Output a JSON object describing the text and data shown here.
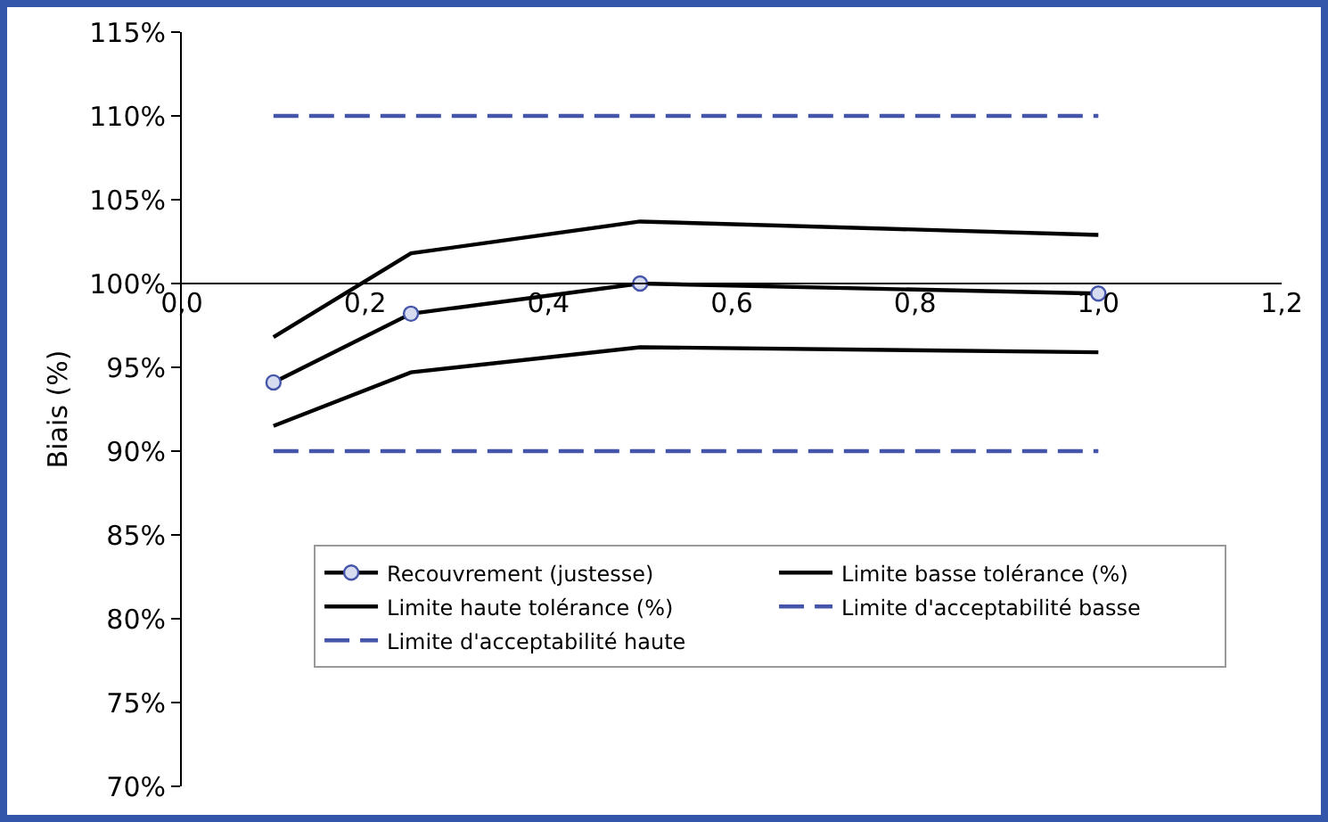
{
  "chart_data": {
    "type": "line",
    "ylabel": "Biais (%)",
    "xlim": [
      0,
      1.2
    ],
    "xticks": [
      {
        "value": 0,
        "label": "0,0"
      },
      {
        "value": 0.2,
        "label": "0,2"
      },
      {
        "value": 0.4,
        "label": "0,4"
      },
      {
        "value": 0.6,
        "label": "0,6"
      },
      {
        "value": 0.8,
        "label": "0,8"
      },
      {
        "value": 1,
        "label": "1,0"
      },
      {
        "value": 1.2,
        "label": "1,2"
      }
    ],
    "ylim": [
      70,
      115
    ],
    "yticks": [
      {
        "value": 70,
        "label": "70%"
      },
      {
        "value": 75,
        "label": "75%"
      },
      {
        "value": 80,
        "label": "80%"
      },
      {
        "value": 85,
        "label": "85%"
      },
      {
        "value": 90,
        "label": "90%"
      },
      {
        "value": 95,
        "label": "95%"
      },
      {
        "value": 100,
        "label": "100%"
      },
      {
        "value": 105,
        "label": "105%"
      },
      {
        "value": 110,
        "label": "110%"
      },
      {
        "value": 115,
        "label": "115%"
      }
    ],
    "x": [
      0.1,
      0.25,
      0.5,
      1.0
    ],
    "series": [
      {
        "name": "Recouvrement (justesse)",
        "color": "#000000",
        "marker": "circle",
        "line_style": "solid",
        "values": [
          94.1,
          98.2,
          100.0,
          99.4
        ]
      },
      {
        "name": "Limite basse tolérance (%)",
        "color": "#000000",
        "line_style": "solid",
        "values": [
          91.5,
          94.7,
          96.2,
          95.9
        ]
      },
      {
        "name": "Limite haute tolérance (%)",
        "color": "#000000",
        "line_style": "solid",
        "values": [
          96.8,
          101.8,
          103.7,
          102.9
        ]
      },
      {
        "name": "Limite d'acceptabilité basse",
        "color": "#4455aa",
        "line_style": "dashed",
        "values": [
          90,
          90,
          90,
          90
        ]
      },
      {
        "name": "Limite d'acceptabilité haute",
        "color": "#4455aa",
        "line_style": "dashed",
        "values": [
          110,
          110,
          110,
          110
        ]
      }
    ],
    "ref_lines": [
      {
        "axis": "y",
        "value": 100,
        "color": "#000000"
      }
    ],
    "grid": false,
    "legend": "bottom"
  }
}
